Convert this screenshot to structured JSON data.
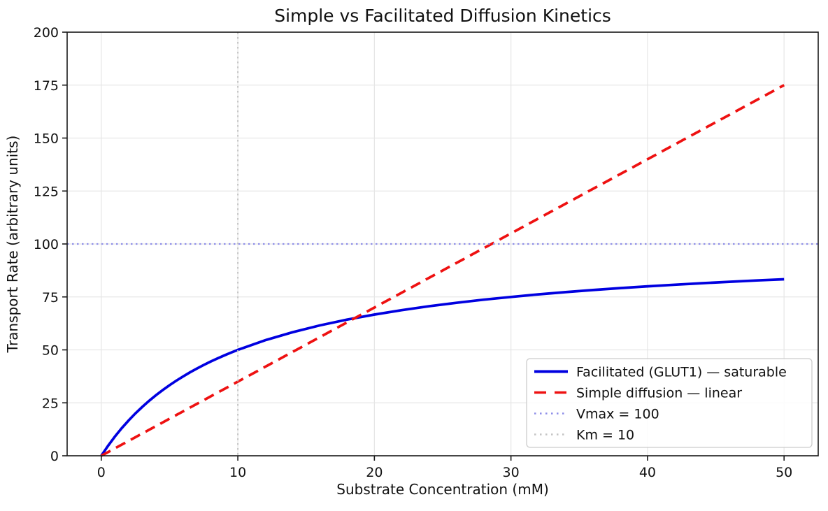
{
  "chart_data": {
    "type": "line",
    "title": "Simple vs Facilitated Diffusion Kinetics",
    "xlabel": "Substrate Concentration (mM)",
    "ylabel": "Transport Rate (arbitrary units)",
    "xlim": [
      -2.5,
      52.5
    ],
    "ylim": [
      0,
      200
    ],
    "xticks": [
      0,
      10,
      20,
      30,
      40,
      50
    ],
    "yticks": [
      0,
      25,
      50,
      75,
      100,
      125,
      150,
      175,
      200
    ],
    "grid": true,
    "colors": {
      "grid": "#e6e6e6",
      "spine": "#1a1a1a",
      "facilitated": "#0000e0",
      "simple": "#ee1111",
      "vmax_line": "#8f8fe8",
      "km_line": "#c4c4c4",
      "legend_border": "#cccccc"
    },
    "legend": {
      "position": "lower right"
    },
    "series": [
      {
        "name": "Facilitated (GLUT1) — saturable",
        "kind": "curve",
        "style": "solid",
        "color": "#0000e0",
        "model": {
          "type": "michaelis_menten",
          "Vmax": 100,
          "Km": 10
        },
        "x": [
          0,
          0.5,
          1,
          1.5,
          2,
          2.5,
          3,
          3.5,
          4,
          4.5,
          5,
          5.5,
          6,
          6.5,
          7,
          7.5,
          8,
          8.5,
          9,
          9.5,
          10,
          12,
          14,
          16,
          18,
          20,
          22,
          24,
          26,
          28,
          30,
          32,
          34,
          36,
          38,
          40,
          42,
          44,
          46,
          48,
          50
        ],
        "y": [
          0,
          4.76,
          9.09,
          13.04,
          16.67,
          20,
          23.08,
          25.93,
          28.57,
          31.03,
          33.33,
          35.48,
          37.5,
          39.39,
          41.18,
          42.86,
          44.44,
          45.95,
          47.37,
          48.72,
          50,
          54.55,
          58.33,
          61.54,
          64.29,
          66.67,
          68.75,
          70.59,
          72.22,
          73.68,
          75,
          76.19,
          77.27,
          78.26,
          79.17,
          80,
          80.77,
          81.48,
          82.14,
          82.76,
          83.33
        ]
      },
      {
        "name": "Simple diffusion — linear",
        "kind": "curve",
        "style": "dashed",
        "color": "#ee1111",
        "model": {
          "type": "linear",
          "slope": 3.5
        },
        "x": [
          0,
          50
        ],
        "y": [
          0,
          175
        ]
      },
      {
        "name": "Vmax = 100",
        "kind": "hline",
        "style": "dotted",
        "color": "#8f8fe8",
        "y": 100
      },
      {
        "name": "Km = 10",
        "kind": "vline",
        "style": "dotted",
        "color": "#c4c4c4",
        "x": 10
      }
    ]
  }
}
